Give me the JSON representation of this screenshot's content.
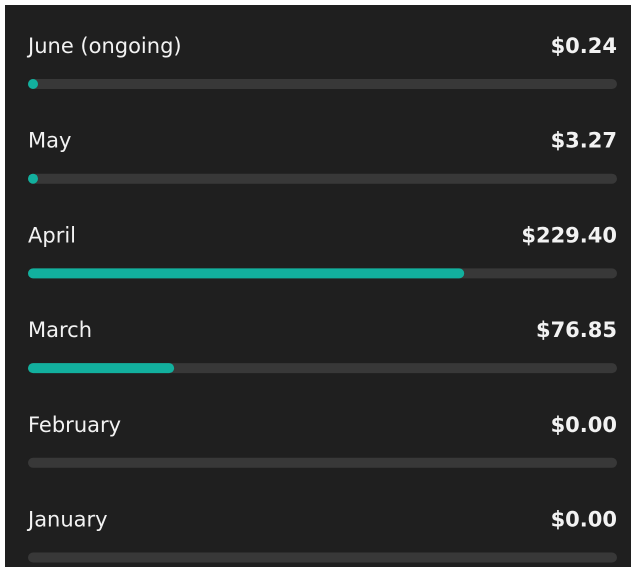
{
  "months": [
    {
      "label": "June (ongoing)",
      "amount": 0.24,
      "amount_label": "$0.24"
    },
    {
      "label": "May",
      "amount": 3.27,
      "amount_label": "$3.27"
    },
    {
      "label": "April",
      "amount": 229.4,
      "amount_label": "$229.40"
    },
    {
      "label": "March",
      "amount": 76.85,
      "amount_label": "$76.85"
    },
    {
      "label": "February",
      "amount": 0.0,
      "amount_label": "$0.00"
    },
    {
      "label": "January",
      "amount": 0.0,
      "amount_label": "$0.00"
    }
  ],
  "bar_color": "#12b09e"
}
